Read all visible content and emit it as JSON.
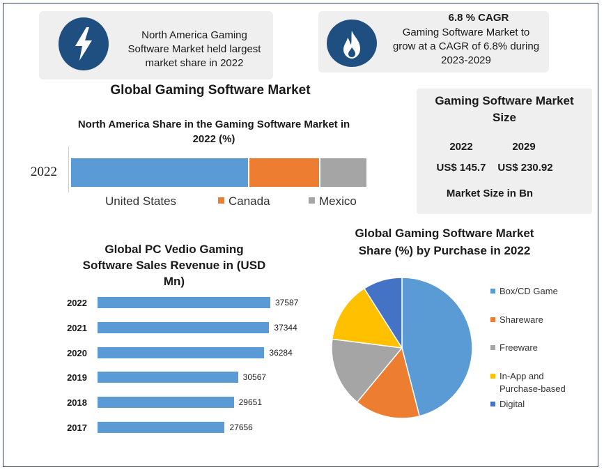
{
  "card_left": {
    "icon": "lightning-bolt-icon",
    "text": [
      "North America Gaming",
      "Software Market held largest",
      "market share in 2022"
    ]
  },
  "card_right": {
    "icon": "flame-icon",
    "heading": "6.8 % CAGR",
    "text": [
      "Gaming Software Market to",
      "grow at a CAGR of 6.8% during",
      "2023-2029"
    ]
  },
  "main_title": "Global Gaming Software Market",
  "market_size": {
    "title_lines": [
      "Gaming Software Market",
      "Size"
    ],
    "years": [
      "2022",
      "2029"
    ],
    "values": [
      "US$ 145.7",
      "US$ 230.92"
    ],
    "unit": "Market Size in Bn"
  },
  "colors": {
    "blue": "#5b9bd5",
    "orange": "#ed7d31",
    "gray": "#a5a5a5",
    "yellow": "#ffc000",
    "navy": "#4472c4",
    "icon_bg": "#1f4f80"
  },
  "chart_data": [
    {
      "type": "bar",
      "orientation": "horizontal",
      "stacked": true,
      "title": "North America Share in the Gaming Software Market in 2022 (%)",
      "title_lines": [
        "North America Share in the Gaming Software Market in",
        "2022 (%)"
      ],
      "categories": [
        "2022"
      ],
      "series": [
        {
          "name": "United States",
          "values": [
            60
          ]
        },
        {
          "name": "Canada",
          "values": [
            24
          ]
        },
        {
          "name": "Mexico",
          "values": [
            16
          ]
        }
      ],
      "xlim": [
        0,
        100
      ],
      "legend": "bottom",
      "grid": false
    },
    {
      "type": "bar",
      "orientation": "horizontal",
      "title": "Global PC Vedio Gaming Software Sales Revenue in (USD Mn)",
      "title_lines": [
        "Global PC Vedio Gaming",
        "Software Sales Revenue in (USD",
        "Mn)"
      ],
      "categories": [
        "2022",
        "2021",
        "2020",
        "2019",
        "2018",
        "2017"
      ],
      "values": [
        37587,
        37344,
        36284,
        30567,
        29651,
        27656
      ],
      "value_labels": [
        "37587",
        "37344",
        "36284",
        "30567",
        "29651",
        "27656"
      ],
      "xlim": [
        0,
        40000
      ],
      "grid": false
    },
    {
      "type": "pie",
      "title": "Global Gaming Software Market Share (%) by Purchase in 2022",
      "title_lines": [
        "Global Gaming Software Market",
        "Share (%) by Purchase in 2022"
      ],
      "categories": [
        "Box/CD Game",
        "Shareware",
        "Freeware",
        "In-App and Purchase-based",
        "Digital"
      ],
      "legend_lines": [
        [
          "Box/CD Game"
        ],
        [
          "Shareware"
        ],
        [
          "Freeware"
        ],
        [
          "In-App and",
          "Purchase-based"
        ],
        [
          "Digital"
        ]
      ],
      "values": [
        46,
        15,
        16,
        14,
        9
      ],
      "legend": "right"
    }
  ]
}
